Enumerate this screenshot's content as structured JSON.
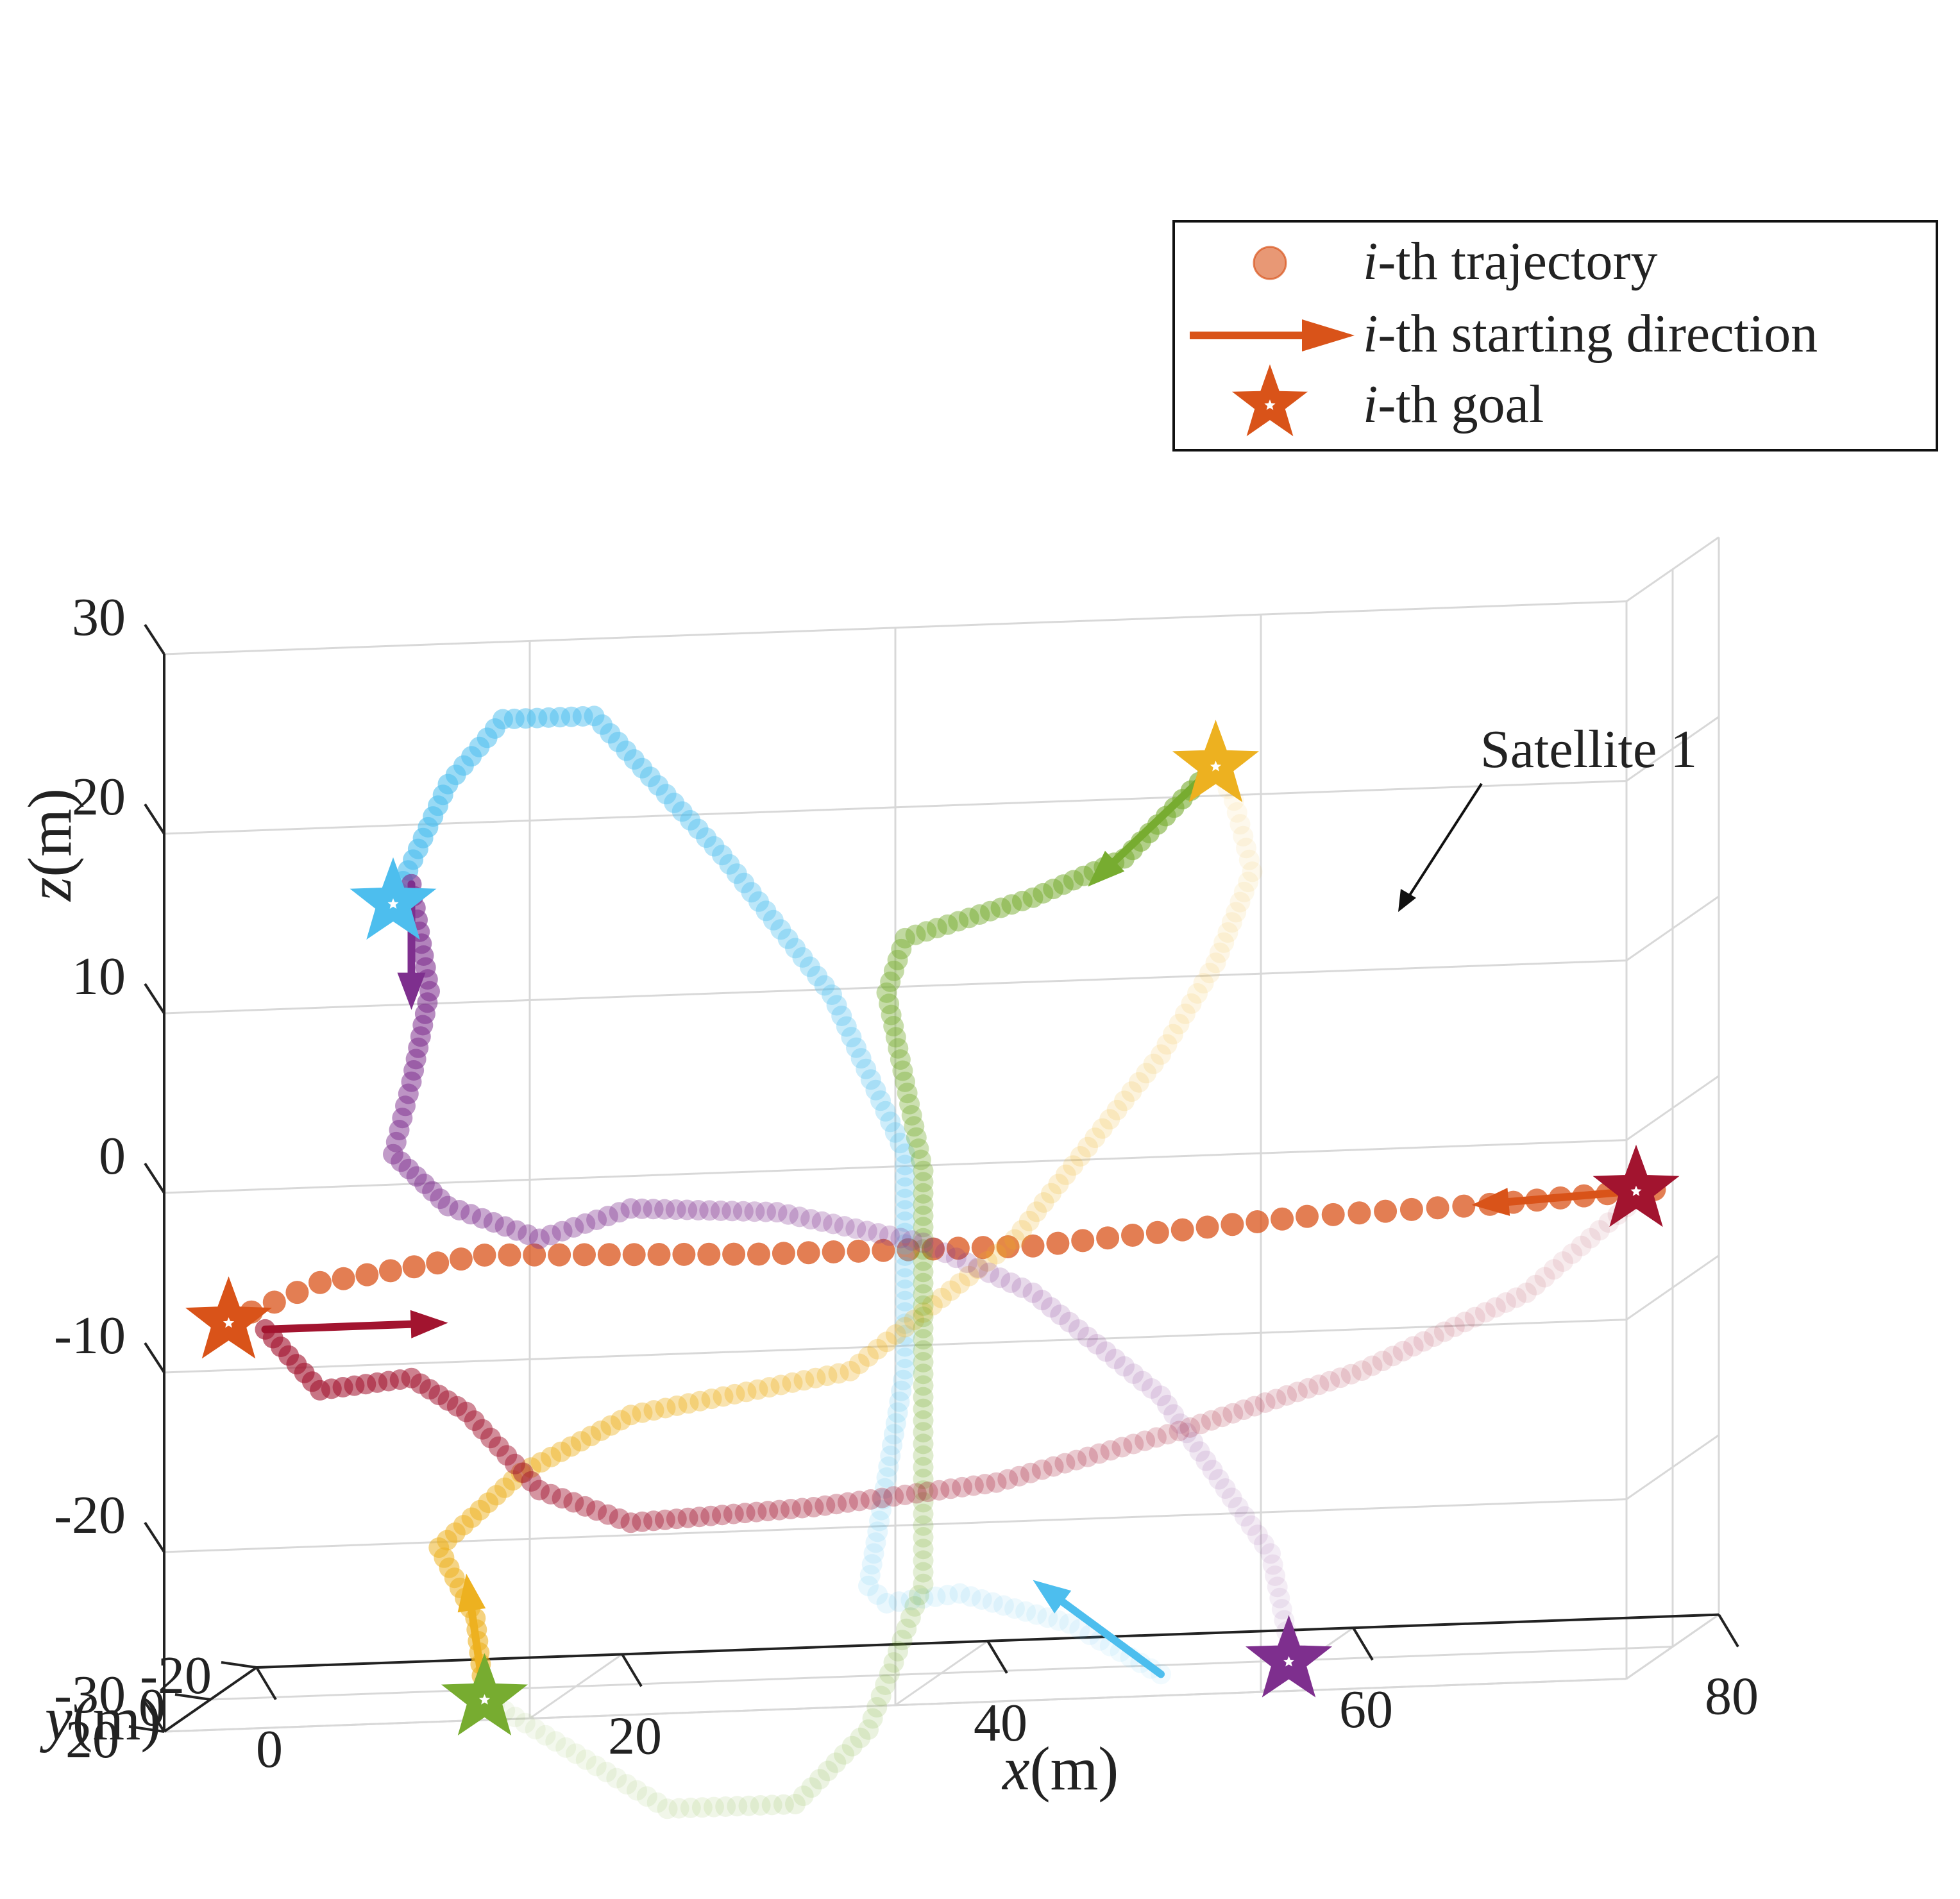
{
  "chart_data": {
    "type": "scatter",
    "projection": "3d",
    "xlabel": {
      "var": "x",
      "unit": "(m)"
    },
    "ylabel": {
      "var": "y",
      "unit": "(m)"
    },
    "zlabel": {
      "var": "z",
      "unit": "(m)"
    },
    "xlim": [
      0,
      80
    ],
    "ylim": [
      -20,
      20
    ],
    "zlim": [
      -30,
      30
    ],
    "x_ticks": [
      "0",
      "20",
      "40",
      "60",
      "80"
    ],
    "y_ticks": [
      "20",
      "0",
      "-20"
    ],
    "z_ticks": [
      "30",
      "20",
      "10",
      "0",
      "-10",
      "-20",
      "-30"
    ],
    "grid": true,
    "legend": {
      "position": "top-right",
      "entries": [
        {
          "prefix": "i",
          "label": "-th trajectory",
          "marker": "circle"
        },
        {
          "prefix": "i",
          "label": "-th starting direction",
          "marker": "arrow"
        },
        {
          "prefix": "i",
          "label": "-th goal",
          "marker": "star"
        }
      ]
    },
    "annotation": {
      "text": "Satellite 1",
      "x": 56,
      "y": 0,
      "z": -5
    },
    "series": [
      {
        "color": "#D95319",
        "highlight": true,
        "points": [
          [
            1,
            0,
            -9
          ],
          [
            6,
            0,
            -7
          ],
          [
            15,
            0,
            -5.8
          ],
          [
            30,
            0,
            -6.3
          ],
          [
            45,
            0,
            -6.4
          ],
          [
            60,
            0,
            -5.3
          ],
          [
            70,
            0,
            -5
          ],
          [
            79,
            0,
            -4.5
          ]
        ],
        "start_dir": [
          [
            79,
            0,
            -4.5
          ],
          [
            69,
            0,
            -5
          ]
        ],
        "goal": [
          1,
          0,
          -9
        ]
      },
      {
        "color": "#4DBEEE",
        "points": [
          [
            10,
            0,
            14
          ],
          [
            13,
            0,
            20.5
          ],
          [
            16,
            0,
            24
          ],
          [
            21,
            0,
            24
          ],
          [
            28,
            0,
            16
          ],
          [
            34,
            0,
            8
          ],
          [
            38,
            0,
            -1
          ],
          [
            38,
            0,
            -13
          ],
          [
            37,
            0,
            -19
          ],
          [
            36,
            0,
            -25
          ],
          [
            37,
            0,
            -26
          ],
          [
            41,
            0,
            -25.6
          ],
          [
            47,
            0,
            -27.5
          ],
          [
            52,
            0,
            -30.5
          ]
        ],
        "start_dir": [
          [
            52,
            0,
            -30.5
          ],
          [
            45,
            0,
            -25
          ]
        ],
        "goal": [
          10,
          0,
          14
        ]
      },
      {
        "color": "#EDB120",
        "points": [
          [
            15,
            0,
            -30.5
          ],
          [
            14.5,
            0,
            -26
          ],
          [
            12.5,
            0,
            -22
          ],
          [
            17,
            0,
            -18
          ],
          [
            23,
            0,
            -15
          ],
          [
            35,
            0,
            -13
          ],
          [
            44,
            0,
            -6
          ],
          [
            52,
            0,
            4
          ],
          [
            55,
            0,
            9
          ],
          [
            57,
            0,
            14
          ],
          [
            56,
            0,
            18
          ],
          [
            55,
            0,
            20
          ]
        ],
        "start_dir": [
          [
            15,
            0,
            -30.5
          ],
          [
            14,
            0,
            -23.5
          ]
        ],
        "goal": [
          55,
          0,
          20
        ]
      },
      {
        "color": "#77AC30",
        "points": [
          [
            55,
            0,
            20
          ],
          [
            50,
            0,
            15
          ],
          [
            45,
            0,
            13
          ],
          [
            38,
            0,
            11
          ],
          [
            37,
            0,
            8
          ],
          [
            39,
            0,
            -2
          ],
          [
            39,
            0,
            -12
          ],
          [
            39,
            0,
            -25
          ],
          [
            36,
            0,
            -33
          ],
          [
            32,
            0,
            -37
          ],
          [
            25,
            0,
            -37
          ],
          [
            15,
            0,
            -30.5
          ]
        ],
        "start_dir": [
          [
            55,
            0,
            20
          ],
          [
            48,
            0,
            13.5
          ]
        ],
        "goal": [
          15,
          0,
          -30.5
        ]
      },
      {
        "color": "#7E2F8E",
        "points": [
          [
            11,
            0,
            15
          ],
          [
            12,
            0,
            9
          ],
          [
            11,
            0,
            4
          ],
          [
            10,
            0,
            0
          ],
          [
            13,
            0,
            -3
          ],
          [
            18,
            0,
            -5
          ],
          [
            23,
            0,
            -3.5
          ],
          [
            31,
            0,
            -4
          ],
          [
            39,
            0,
            -6
          ],
          [
            45,
            0,
            -9
          ],
          [
            52,
            0,
            -15
          ],
          [
            58,
            0,
            -24
          ],
          [
            59,
            0,
            -29
          ]
        ],
        "start_dir": [
          [
            11,
            0,
            15
          ],
          [
            11,
            0,
            8
          ]
        ],
        "goal": [
          59,
          0,
          -30
        ]
      },
      {
        "color": "#A2142F",
        "points": [
          [
            3,
            0,
            -9.5
          ],
          [
            6,
            0,
            -13
          ],
          [
            11,
            0,
            -12.5
          ],
          [
            14,
            0,
            -14.5
          ],
          [
            18,
            0,
            -19
          ],
          [
            23,
            0,
            -21
          ],
          [
            33,
            0,
            -20.5
          ],
          [
            43,
            0,
            -19.5
          ],
          [
            53,
            0,
            -17
          ],
          [
            63,
            0,
            -14
          ],
          [
            72,
            0,
            -10
          ],
          [
            78,
            0,
            -5
          ]
        ],
        "start_dir": [
          [
            3,
            0,
            -9.5
          ],
          [
            13,
            0,
            -9.5
          ]
        ],
        "goal": [
          78,
          0,
          -4.5
        ]
      }
    ]
  }
}
